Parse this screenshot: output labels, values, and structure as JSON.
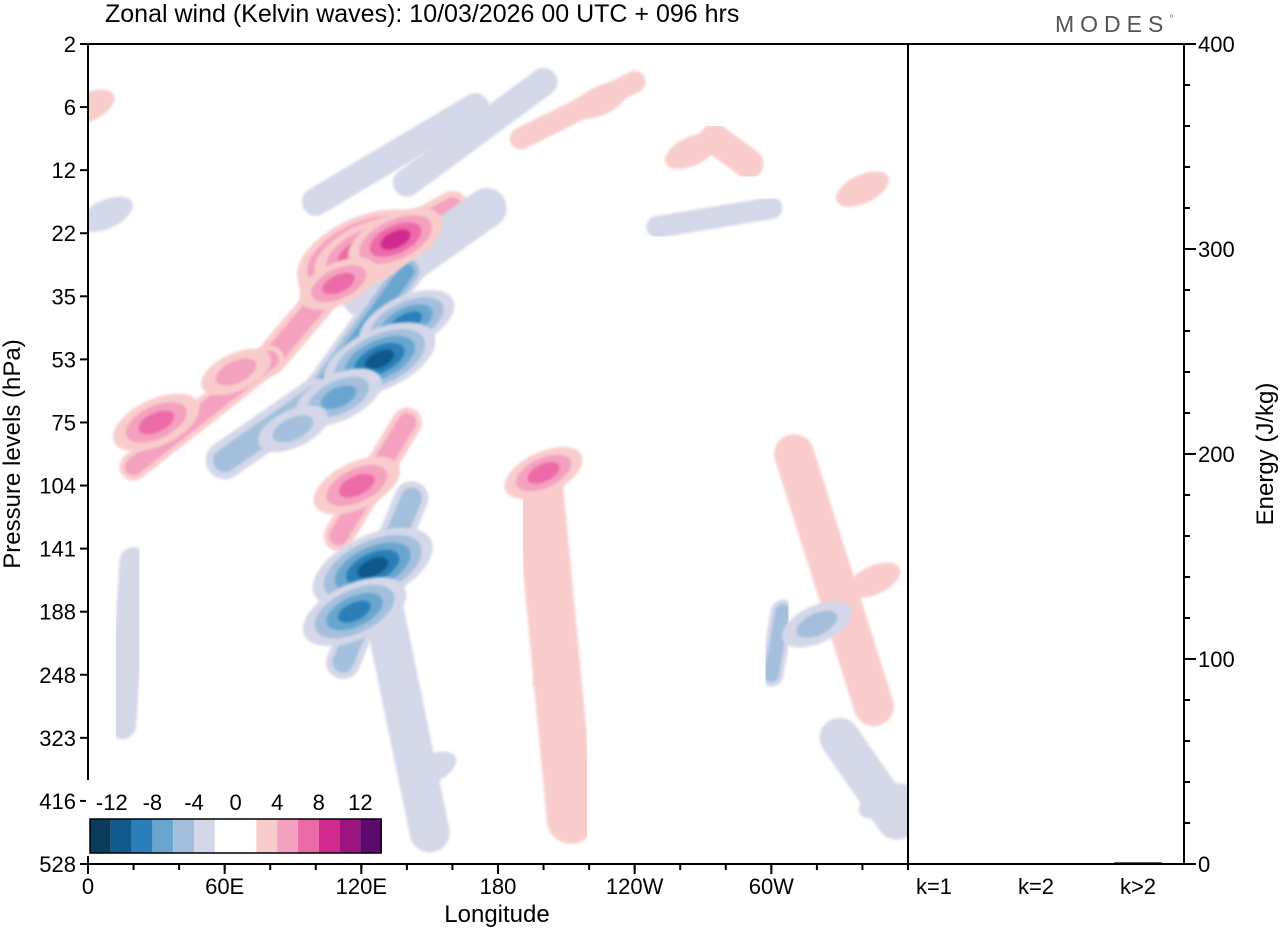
{
  "title": "Zonal wind (Kelvin waves):  10/03/2026  00 UTC  + 096 hrs",
  "brand": "MODES",
  "brand_mark": "°",
  "chart_data": {
    "type": "heatmap",
    "title": "Zonal wind (Kelvin waves):  10/03/2026  00 UTC  + 096 hrs",
    "xlabel": "Longitude",
    "ylabel": "Pressure levels (hPa)",
    "x_ticks": [
      "0",
      "60E",
      "120E",
      "180",
      "120W",
      "60W"
    ],
    "y_ticks": [
      "2",
      "6",
      "12",
      "22",
      "35",
      "53",
      "75",
      "104",
      "141",
      "188",
      "248",
      "323",
      "416",
      "528"
    ],
    "colorbar": {
      "labels": [
        "-12",
        "-8",
        "-4",
        "0",
        "4",
        "8",
        "12"
      ],
      "colors": [
        "#0a3d5c",
        "#0f5a8a",
        "#2b7fb8",
        "#69a6cf",
        "#a3bfdc",
        "#d4d7e8",
        "#ffffff",
        "#ffffff",
        "#f9cccc",
        "#f4a0bf",
        "#ec6aa8",
        "#cf2a8c",
        "#9c1480",
        "#5c0a6e"
      ]
    },
    "blobs": [
      {
        "lon": 120,
        "lev": 3.3,
        "value": 12
      },
      {
        "lon": 122,
        "lev": 3.3,
        "value": 9
      },
      {
        "lon": 135,
        "lev": 3.1,
        "value": 8
      },
      {
        "lon": 110,
        "lev": 3.8,
        "value": 6
      },
      {
        "lon": 140,
        "lev": 4.4,
        "value": -8
      },
      {
        "lon": 128,
        "lev": 5.0,
        "value": -10
      },
      {
        "lon": 110,
        "lev": 5.6,
        "value": -7
      },
      {
        "lon": 90,
        "lev": 6.1,
        "value": -5
      },
      {
        "lon": 118,
        "lev": 7.0,
        "value": 7
      },
      {
        "lon": 125,
        "lev": 8.3,
        "value": -11
      },
      {
        "lon": 117,
        "lev": 9.0,
        "value": -9
      },
      {
        "lon": 30,
        "lev": 6.0,
        "value": 7
      },
      {
        "lon": 65,
        "lev": 5.2,
        "value": 5
      },
      {
        "lon": 8,
        "lev": 2.7,
        "value": -3
      },
      {
        "lon": 0,
        "lev": 1.0,
        "value": 3
      },
      {
        "lon": 200,
        "lev": 6.8,
        "value": 6
      },
      {
        "lon": 205,
        "lev": 10.0,
        "value": 2
      },
      {
        "lon": 320,
        "lev": 9.2,
        "value": -5
      },
      {
        "lon": 345,
        "lev": 8.5,
        "value": 3
      },
      {
        "lon": 350,
        "lev": 12.0,
        "value": -3
      },
      {
        "lon": 150,
        "lev": 11.5,
        "value": -3
      },
      {
        "lon": 265,
        "lev": 1.7,
        "value": 3
      },
      {
        "lon": 225,
        "lev": 0.9,
        "value": 3
      },
      {
        "lon": 340,
        "lev": 2.3,
        "value": 3
      }
    ],
    "bands": [
      {
        "lon1": 120,
        "lev1": 3.3,
        "lon2": 80,
        "lev2": 5.0,
        "value": 4,
        "width": 32
      },
      {
        "lon1": 80,
        "lev1": 5.0,
        "lon2": 20,
        "lev2": 6.7,
        "value": 4,
        "width": 28
      },
      {
        "lon1": 160,
        "lev1": 2.6,
        "lon2": 100,
        "lev2": 3.8,
        "value": 4,
        "width": 34
      },
      {
        "lon1": 175,
        "lev1": 2.6,
        "lon2": 120,
        "lev2": 4.0,
        "value": -3,
        "width": 40
      },
      {
        "lon1": 140,
        "lev1": 3.6,
        "lon2": 100,
        "lev2": 5.6,
        "value": -6,
        "width": 34
      },
      {
        "lon1": 100,
        "lev1": 5.6,
        "lon2": 60,
        "lev2": 6.6,
        "value": -4,
        "width": 38
      },
      {
        "lon1": 140,
        "lev1": 6.0,
        "lon2": 110,
        "lev2": 7.8,
        "value": 4,
        "width": 30
      },
      {
        "lon1": 142,
        "lev1": 7.2,
        "lon2": 112,
        "lev2": 9.8,
        "value": -5,
        "width": 34
      },
      {
        "lon1": 130,
        "lev1": 9.0,
        "lon2": 150,
        "lev2": 12.5,
        "value": -3,
        "width": 40
      },
      {
        "lon1": 198,
        "lev1": 7.0,
        "lon2": 212,
        "lev2": 12.3,
        "value": 3,
        "width": 48
      },
      {
        "lon1": 310,
        "lev1": 6.5,
        "lon2": 345,
        "lev2": 10.5,
        "value": 3,
        "width": 40
      },
      {
        "lon1": 330,
        "lev1": 11.0,
        "lon2": 355,
        "lev2": 12.3,
        "value": -3,
        "width": 40
      },
      {
        "lon1": 190,
        "lev1": 1.5,
        "lon2": 240,
        "lev2": 0.6,
        "value": 3,
        "width": 22
      },
      {
        "lon1": 140,
        "lev1": 2.2,
        "lon2": 200,
        "lev2": 0.6,
        "value": -3,
        "width": 28
      },
      {
        "lon1": 100,
        "lev1": 2.5,
        "lon2": 170,
        "lev2": 1.0,
        "value": -3,
        "width": 28
      },
      {
        "lon1": 250,
        "lev1": 2.9,
        "lon2": 300,
        "lev2": 2.6,
        "value": -3,
        "width": 22
      },
      {
        "lon1": 20,
        "lev1": 8.2,
        "lon2": 15,
        "lev2": 10.8,
        "value": -3,
        "width": 28
      },
      {
        "lon1": 275,
        "lev1": 1.5,
        "lon2": 290,
        "lev2": 1.9,
        "value": 3,
        "width": 30
      },
      {
        "lon1": 305,
        "lev1": 9.0,
        "lon2": 300,
        "lev2": 10.0,
        "value": -4,
        "width": 24
      }
    ],
    "energy_panel": {
      "ylabel": "Energy (J/kg)",
      "y_ticks": [
        "0",
        "100",
        "200",
        "300",
        "400"
      ],
      "ylim": [
        0,
        400
      ],
      "categories": [
        "k=1",
        "k=2",
        "k>2"
      ],
      "values": [
        0.3,
        0.5,
        0.8
      ]
    }
  }
}
